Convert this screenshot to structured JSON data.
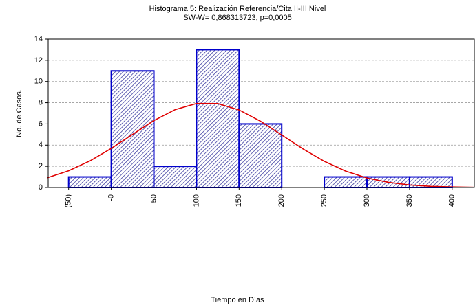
{
  "chart_data": {
    "type": "histogram",
    "title": "Histograma 5: Realización Referencia/Cita II-III Nivel",
    "subtitle": "SW-W= 0,868313723, p=0,0005",
    "x_label": "Tiempo en Días",
    "y_label": "No. de Casos.",
    "bins": [
      -50,
      0,
      50,
      100,
      150,
      200,
      250,
      300,
      350,
      400
    ],
    "values": [
      1,
      11,
      2,
      13,
      6,
      0,
      1,
      1,
      1
    ],
    "color": "#0000cc",
    "xlim": [
      -74,
      426
    ],
    "xticks": [
      {
        "value": -50,
        "label": "(50)"
      },
      {
        "value": 0,
        "label": "-0"
      },
      50,
      100,
      150,
      200,
      250,
      300,
      350,
      400
    ],
    "ylim": [
      0,
      14
    ],
    "yticks": [
      0,
      2,
      4,
      6,
      8,
      10,
      12,
      14
    ],
    "grid": true,
    "curve": {
      "color": "#e00000",
      "x": [
        -75,
        -50,
        -25,
        0,
        25,
        50,
        75,
        100,
        125,
        150,
        175,
        200,
        225,
        250,
        275,
        300,
        325,
        350,
        375,
        400,
        425
      ],
      "values": [
        0.92,
        1.58,
        2.51,
        3.69,
        5.01,
        6.31,
        7.35,
        7.93,
        7.92,
        7.32,
        6.26,
        4.96,
        3.64,
        2.47,
        1.55,
        0.9,
        0.49,
        0.24,
        0.11,
        0.05,
        0.02
      ]
    }
  }
}
